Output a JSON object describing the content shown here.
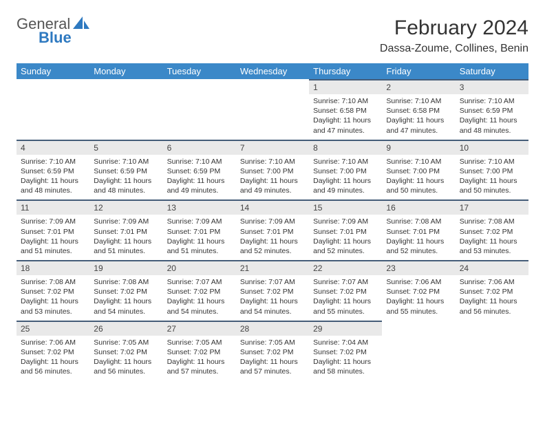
{
  "brand": {
    "text_general": "General",
    "text_blue": "Blue",
    "sail_color": "#2e79c0",
    "general_color": "#555555"
  },
  "header": {
    "month_title": "February 2024",
    "location": "Dassa-Zoume, Collines, Benin"
  },
  "theme": {
    "header_bg": "#3b88c8",
    "header_text": "#ffffff",
    "daynum_bg": "#e9e9e9",
    "daynum_border": "#445c78",
    "body_text": "#333333",
    "page_bg": "#ffffff"
  },
  "weekdays": [
    "Sunday",
    "Monday",
    "Tuesday",
    "Wednesday",
    "Thursday",
    "Friday",
    "Saturday"
  ],
  "weeks": [
    [
      null,
      null,
      null,
      null,
      {
        "n": "1",
        "sunrise": "7:10 AM",
        "sunset": "6:58 PM",
        "daylight": "11 hours and 47 minutes."
      },
      {
        "n": "2",
        "sunrise": "7:10 AM",
        "sunset": "6:58 PM",
        "daylight": "11 hours and 47 minutes."
      },
      {
        "n": "3",
        "sunrise": "7:10 AM",
        "sunset": "6:59 PM",
        "daylight": "11 hours and 48 minutes."
      }
    ],
    [
      {
        "n": "4",
        "sunrise": "7:10 AM",
        "sunset": "6:59 PM",
        "daylight": "11 hours and 48 minutes."
      },
      {
        "n": "5",
        "sunrise": "7:10 AM",
        "sunset": "6:59 PM",
        "daylight": "11 hours and 48 minutes."
      },
      {
        "n": "6",
        "sunrise": "7:10 AM",
        "sunset": "6:59 PM",
        "daylight": "11 hours and 49 minutes."
      },
      {
        "n": "7",
        "sunrise": "7:10 AM",
        "sunset": "7:00 PM",
        "daylight": "11 hours and 49 minutes."
      },
      {
        "n": "8",
        "sunrise": "7:10 AM",
        "sunset": "7:00 PM",
        "daylight": "11 hours and 49 minutes."
      },
      {
        "n": "9",
        "sunrise": "7:10 AM",
        "sunset": "7:00 PM",
        "daylight": "11 hours and 50 minutes."
      },
      {
        "n": "10",
        "sunrise": "7:10 AM",
        "sunset": "7:00 PM",
        "daylight": "11 hours and 50 minutes."
      }
    ],
    [
      {
        "n": "11",
        "sunrise": "7:09 AM",
        "sunset": "7:01 PM",
        "daylight": "11 hours and 51 minutes."
      },
      {
        "n": "12",
        "sunrise": "7:09 AM",
        "sunset": "7:01 PM",
        "daylight": "11 hours and 51 minutes."
      },
      {
        "n": "13",
        "sunrise": "7:09 AM",
        "sunset": "7:01 PM",
        "daylight": "11 hours and 51 minutes."
      },
      {
        "n": "14",
        "sunrise": "7:09 AM",
        "sunset": "7:01 PM",
        "daylight": "11 hours and 52 minutes."
      },
      {
        "n": "15",
        "sunrise": "7:09 AM",
        "sunset": "7:01 PM",
        "daylight": "11 hours and 52 minutes."
      },
      {
        "n": "16",
        "sunrise": "7:08 AM",
        "sunset": "7:01 PM",
        "daylight": "11 hours and 52 minutes."
      },
      {
        "n": "17",
        "sunrise": "7:08 AM",
        "sunset": "7:02 PM",
        "daylight": "11 hours and 53 minutes."
      }
    ],
    [
      {
        "n": "18",
        "sunrise": "7:08 AM",
        "sunset": "7:02 PM",
        "daylight": "11 hours and 53 minutes."
      },
      {
        "n": "19",
        "sunrise": "7:08 AM",
        "sunset": "7:02 PM",
        "daylight": "11 hours and 54 minutes."
      },
      {
        "n": "20",
        "sunrise": "7:07 AM",
        "sunset": "7:02 PM",
        "daylight": "11 hours and 54 minutes."
      },
      {
        "n": "21",
        "sunrise": "7:07 AM",
        "sunset": "7:02 PM",
        "daylight": "11 hours and 54 minutes."
      },
      {
        "n": "22",
        "sunrise": "7:07 AM",
        "sunset": "7:02 PM",
        "daylight": "11 hours and 55 minutes."
      },
      {
        "n": "23",
        "sunrise": "7:06 AM",
        "sunset": "7:02 PM",
        "daylight": "11 hours and 55 minutes."
      },
      {
        "n": "24",
        "sunrise": "7:06 AM",
        "sunset": "7:02 PM",
        "daylight": "11 hours and 56 minutes."
      }
    ],
    [
      {
        "n": "25",
        "sunrise": "7:06 AM",
        "sunset": "7:02 PM",
        "daylight": "11 hours and 56 minutes."
      },
      {
        "n": "26",
        "sunrise": "7:05 AM",
        "sunset": "7:02 PM",
        "daylight": "11 hours and 56 minutes."
      },
      {
        "n": "27",
        "sunrise": "7:05 AM",
        "sunset": "7:02 PM",
        "daylight": "11 hours and 57 minutes."
      },
      {
        "n": "28",
        "sunrise": "7:05 AM",
        "sunset": "7:02 PM",
        "daylight": "11 hours and 57 minutes."
      },
      {
        "n": "29",
        "sunrise": "7:04 AM",
        "sunset": "7:02 PM",
        "daylight": "11 hours and 58 minutes."
      },
      null,
      null
    ]
  ],
  "labels": {
    "sunrise": "Sunrise:",
    "sunset": "Sunset:",
    "daylight": "Daylight:"
  }
}
